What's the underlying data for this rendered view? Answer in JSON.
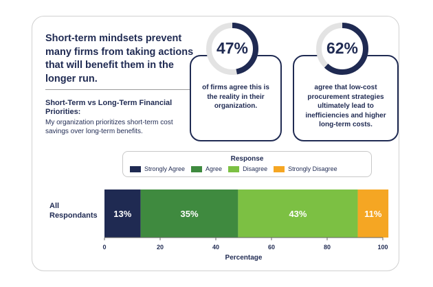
{
  "headline": "Short-term mindsets prevent many firms from taking actions that will benefit them in the longer run.",
  "subheading": "Short-Term vs Long-Term Financial Priorities:",
  "subtext": "My organization prioritizes short-term cost savings over long-term benefits.",
  "stats": [
    {
      "percent": "47%",
      "value": 47,
      "description": "of firms agree this is the reality in their organization."
    },
    {
      "percent": "62%",
      "value": 62,
      "description": "agree that low-cost procurement strategies ultimately lead to inefficiencies and higher long-term costs."
    }
  ],
  "colors": {
    "navy": "#1f2a52",
    "ring_track": "#e3e3e3",
    "strongly_agree": "#1f2a52",
    "agree": "#3f8a3f",
    "disagree": "#7cc043",
    "strongly_disagree": "#f5a623"
  },
  "chart_data": {
    "type": "bar",
    "orientation": "horizontal-stacked",
    "categories": [
      "All Respondants"
    ],
    "legend_title": "Response",
    "series": [
      {
        "name": "Strongly Agree",
        "values": [
          13
        ],
        "label": "13%",
        "color": "#1f2a52"
      },
      {
        "name": "Agree",
        "values": [
          35
        ],
        "label": "35%",
        "color": "#3f8a3f"
      },
      {
        "name": "Disagree",
        "values": [
          43
        ],
        "label": "43%",
        "color": "#7cc043"
      },
      {
        "name": "Strongly Disagree",
        "values": [
          11
        ],
        "label": "11%",
        "color": "#f5a623"
      }
    ],
    "xlabel": "Percentage",
    "xlim": [
      0,
      100
    ],
    "xticks": [
      "0",
      "20",
      "40",
      "60",
      "80",
      "100"
    ],
    "legend_position": "top"
  }
}
